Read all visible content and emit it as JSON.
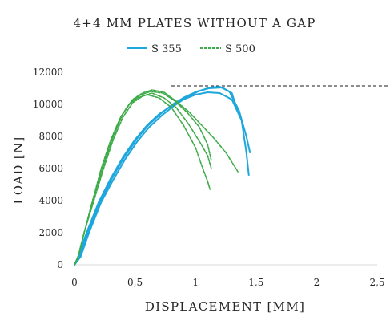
{
  "chart_data": {
    "type": "line",
    "title": "4+4 MM PLATES WITHOUT A GAP",
    "xlabel": "DISPLACEMENT [MM]",
    "ylabel": "LOAD [N]",
    "xlim": [
      0,
      2.5
    ],
    "ylim": [
      0,
      12000
    ],
    "x_ticks": [
      "0",
      "0,5",
      "1",
      "1,5",
      "2",
      "2,5"
    ],
    "x_tick_values": [
      0,
      0.5,
      1,
      1.5,
      2,
      2.5
    ],
    "y_ticks": [
      "0",
      "2000",
      "4000",
      "6000",
      "8000",
      "10000",
      "12000"
    ],
    "y_tick_values": [
      0,
      2000,
      4000,
      6000,
      8000,
      10000,
      12000
    ],
    "legend_position": "top",
    "reference_line": {
      "y": 11150,
      "x_start": 0.8,
      "style": "dashed",
      "color": "#1a1a1a"
    },
    "series": [
      {
        "name": "S 355",
        "color": "#1ea7dc",
        "style": "solid",
        "curves": [
          [
            [
              0,
              0
            ],
            [
              0.03,
              500
            ],
            [
              0.1,
              2000
            ],
            [
              0.2,
              3900
            ],
            [
              0.3,
              5400
            ],
            [
              0.4,
              6700
            ],
            [
              0.5,
              7800
            ],
            [
              0.6,
              8700
            ],
            [
              0.7,
              9400
            ],
            [
              0.8,
              9900
            ],
            [
              0.9,
              10300
            ],
            [
              1.0,
              10600
            ],
            [
              1.1,
              10750
            ],
            [
              1.2,
              10700
            ],
            [
              1.3,
              10300
            ],
            [
              1.38,
              9000
            ],
            [
              1.42,
              7000
            ],
            [
              1.44,
              5600
            ]
          ],
          [
            [
              0,
              0
            ],
            [
              0.05,
              500
            ],
            [
              0.12,
              2000
            ],
            [
              0.22,
              3900
            ],
            [
              0.32,
              5300
            ],
            [
              0.42,
              6600
            ],
            [
              0.52,
              7700
            ],
            [
              0.62,
              8600
            ],
            [
              0.72,
              9300
            ],
            [
              0.82,
              9900
            ],
            [
              0.92,
              10400
            ],
            [
              1.02,
              10800
            ],
            [
              1.12,
              11050
            ],
            [
              1.2,
              11100
            ],
            [
              1.28,
              10800
            ],
            [
              1.36,
              9600
            ],
            [
              1.42,
              8000
            ],
            [
              1.45,
              7000
            ]
          ],
          [
            [
              0,
              0
            ],
            [
              0.04,
              500
            ],
            [
              0.11,
              2000
            ],
            [
              0.21,
              3900
            ],
            [
              0.31,
              5400
            ],
            [
              0.41,
              6700
            ],
            [
              0.51,
              7800
            ],
            [
              0.61,
              8700
            ],
            [
              0.71,
              9400
            ],
            [
              0.81,
              10000
            ],
            [
              0.91,
              10450
            ],
            [
              1.01,
              10800
            ],
            [
              1.11,
              11000
            ],
            [
              1.22,
              11050
            ],
            [
              1.3,
              10700
            ],
            [
              1.35,
              9500
            ]
          ]
        ]
      },
      {
        "name": "S 500",
        "color": "#3dab48",
        "style": "dashed",
        "curves": [
          [
            [
              0,
              0
            ],
            [
              0.03,
              500
            ],
            [
              0.08,
              2000
            ],
            [
              0.15,
              4000
            ],
            [
              0.22,
              6000
            ],
            [
              0.3,
              7800
            ],
            [
              0.38,
              9200
            ],
            [
              0.45,
              10000
            ],
            [
              0.52,
              10400
            ],
            [
              0.6,
              10600
            ],
            [
              0.7,
              10400
            ],
            [
              0.8,
              9800
            ],
            [
              0.9,
              8700
            ],
            [
              1.0,
              7300
            ],
            [
              1.05,
              6200
            ],
            [
              1.1,
              5200
            ],
            [
              1.12,
              4700
            ]
          ],
          [
            [
              0,
              0
            ],
            [
              0.03,
              500
            ],
            [
              0.08,
              2000
            ],
            [
              0.16,
              4000
            ],
            [
              0.24,
              6000
            ],
            [
              0.32,
              7800
            ],
            [
              0.4,
              9200
            ],
            [
              0.48,
              10100
            ],
            [
              0.56,
              10500
            ],
            [
              0.64,
              10700
            ],
            [
              0.74,
              10400
            ],
            [
              0.84,
              9800
            ],
            [
              0.94,
              8800
            ],
            [
              1.04,
              7600
            ],
            [
              1.1,
              6800
            ],
            [
              1.13,
              6000
            ]
          ],
          [
            [
              0,
              0
            ],
            [
              0.03,
              500
            ],
            [
              0.08,
              2000
            ],
            [
              0.15,
              4000
            ],
            [
              0.23,
              6000
            ],
            [
              0.31,
              7800
            ],
            [
              0.39,
              9300
            ],
            [
              0.47,
              10200
            ],
            [
              0.55,
              10600
            ],
            [
              0.63,
              10800
            ],
            [
              0.73,
              10700
            ],
            [
              0.83,
              10200
            ],
            [
              0.93,
              9500
            ],
            [
              1.03,
              8600
            ],
            [
              1.1,
              7500
            ],
            [
              1.13,
              6500
            ]
          ],
          [
            [
              0,
              0
            ],
            [
              0.03,
              500
            ],
            [
              0.08,
              2000
            ],
            [
              0.15,
              4000
            ],
            [
              0.23,
              6000
            ],
            [
              0.31,
              7900
            ],
            [
              0.4,
              9400
            ],
            [
              0.48,
              10300
            ],
            [
              0.56,
              10700
            ],
            [
              0.64,
              10900
            ],
            [
              0.74,
              10750
            ],
            [
              0.84,
              10200
            ],
            [
              0.95,
              9500
            ],
            [
              1.05,
              8700
            ],
            [
              1.15,
              7900
            ],
            [
              1.25,
              7000
            ],
            [
              1.35,
              5800
            ]
          ]
        ]
      }
    ]
  }
}
